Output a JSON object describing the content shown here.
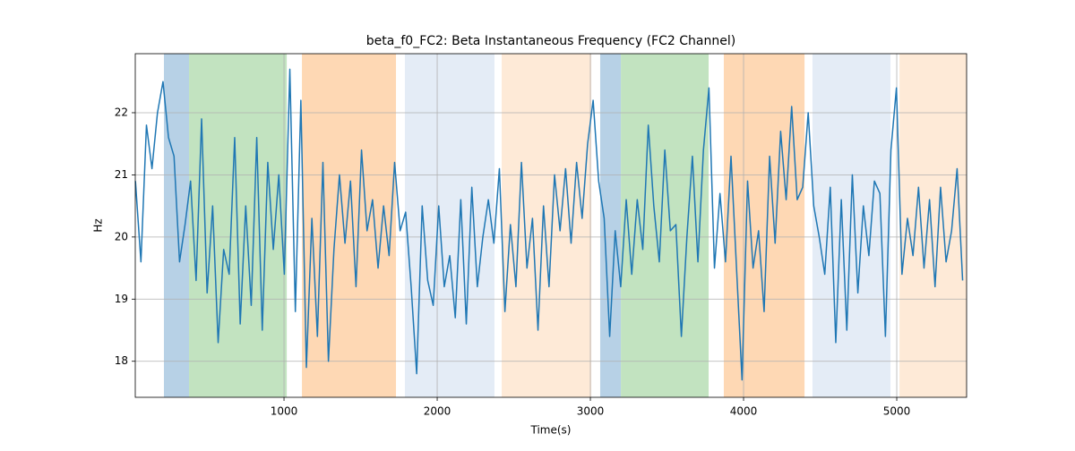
{
  "chart_data": {
    "type": "line",
    "title": "beta_f0_FC2: Beta Instantaneous Frequency (FC2 Channel)",
    "xlabel": "Time(s)",
    "ylabel": "Hz",
    "xlim": [
      29,
      5456
    ],
    "ylim": [
      17.42,
      22.95
    ],
    "xticks": [
      1000,
      2000,
      3000,
      4000,
      5000
    ],
    "yticks": [
      18,
      19,
      20,
      21,
      22
    ],
    "grid": true,
    "spans": [
      {
        "start": 216,
        "end": 380,
        "color": "#b7d1e6"
      },
      {
        "start": 380,
        "end": 1018,
        "color": "#c2e3c0"
      },
      {
        "start": 1117,
        "end": 1731,
        "color": "#fed8b4"
      },
      {
        "start": 1789,
        "end": 2374,
        "color": "#e4ecf6"
      },
      {
        "start": 2421,
        "end": 3006,
        "color": "#feead7"
      },
      {
        "start": 3064,
        "end": 3199,
        "color": "#b7d1e6"
      },
      {
        "start": 3199,
        "end": 3772,
        "color": "#c2e3c0"
      },
      {
        "start": 3871,
        "end": 4398,
        "color": "#fed8b4"
      },
      {
        "start": 4450,
        "end": 4959,
        "color": "#e4ecf6"
      },
      {
        "start": 5018,
        "end": 5456,
        "color": "#feead7"
      }
    ],
    "series": [
      {
        "name": "beta_f0_FC2",
        "color": "#1f77b4",
        "x": [
          30,
          66,
          102,
          138,
          174,
          210,
          246,
          282,
          318,
          354,
          390,
          426,
          462,
          498,
          534,
          570,
          606,
          642,
          678,
          714,
          750,
          786,
          822,
          858,
          894,
          930,
          966,
          1002,
          1038,
          1074,
          1110,
          1146,
          1182,
          1218,
          1254,
          1290,
          1326,
          1362,
          1398,
          1434,
          1470,
          1506,
          1542,
          1578,
          1614,
          1650,
          1686,
          1722,
          1758,
          1794,
          1830,
          1866,
          1902,
          1938,
          1974,
          2010,
          2046,
          2082,
          2118,
          2154,
          2190,
          2226,
          2262,
          2298,
          2334,
          2370,
          2406,
          2442,
          2478,
          2514,
          2550,
          2586,
          2622,
          2658,
          2694,
          2730,
          2766,
          2802,
          2838,
          2874,
          2910,
          2946,
          2982,
          3018,
          3054,
          3090,
          3126,
          3162,
          3198,
          3234,
          3270,
          3306,
          3342,
          3378,
          3414,
          3450,
          3486,
          3522,
          3558,
          3594,
          3630,
          3666,
          3702,
          3738,
          3774,
          3810,
          3846,
          3882,
          3918,
          3954,
          3990,
          4026,
          4062,
          4098,
          4134,
          4170,
          4206,
          4242,
          4278,
          4314,
          4350,
          4386,
          4422,
          4458,
          4494,
          4530,
          4566,
          4602,
          4638,
          4674,
          4710,
          4746,
          4782,
          4818,
          4854,
          4890,
          4926,
          4962,
          4998,
          5034,
          5070,
          5106,
          5142,
          5178,
          5214,
          5250,
          5286,
          5322,
          5358,
          5394,
          5430
        ],
        "values": [
          20.9,
          19.6,
          21.8,
          21.1,
          22.0,
          22.5,
          21.6,
          21.3,
          19.6,
          20.2,
          20.9,
          19.3,
          21.9,
          19.1,
          20.5,
          18.3,
          19.8,
          19.4,
          21.6,
          18.6,
          20.5,
          18.9,
          21.6,
          18.5,
          21.2,
          19.8,
          21.0,
          19.4,
          22.7,
          18.8,
          22.2,
          17.9,
          20.3,
          18.4,
          21.2,
          18.0,
          19.8,
          21.0,
          19.9,
          20.9,
          19.2,
          21.4,
          20.1,
          20.6,
          19.5,
          20.5,
          19.7,
          21.2,
          20.1,
          20.4,
          19.2,
          17.8,
          20.5,
          19.3,
          18.9,
          20.5,
          19.2,
          19.7,
          18.7,
          20.6,
          18.6,
          20.8,
          19.2,
          20.0,
          20.6,
          19.9,
          21.1,
          18.8,
          20.2,
          19.2,
          21.2,
          19.5,
          20.3,
          18.5,
          20.5,
          19.2,
          21.0,
          20.1,
          21.1,
          19.9,
          21.2,
          20.3,
          21.5,
          22.2,
          20.9,
          20.3,
          18.4,
          20.1,
          19.2,
          20.6,
          19.4,
          20.6,
          19.8,
          21.8,
          20.5,
          19.6,
          21.4,
          20.1,
          20.2,
          18.4,
          20.0,
          21.3,
          19.6,
          21.4,
          22.4,
          19.5,
          20.7,
          19.6,
          21.3,
          19.5,
          17.7,
          20.9,
          19.5,
          20.1,
          18.8,
          21.3,
          19.9,
          21.7,
          20.6,
          22.1,
          20.6,
          20.8,
          22.0,
          20.5,
          20.0,
          19.4,
          20.8,
          18.3,
          20.6,
          18.5,
          21.0,
          19.1,
          20.5,
          19.7,
          20.9,
          20.7,
          18.4,
          21.4,
          22.4,
          19.4,
          20.3,
          19.7,
          20.8,
          19.5,
          20.6,
          19.2,
          20.8,
          19.6,
          20.1,
          21.1,
          19.3
        ]
      }
    ]
  }
}
